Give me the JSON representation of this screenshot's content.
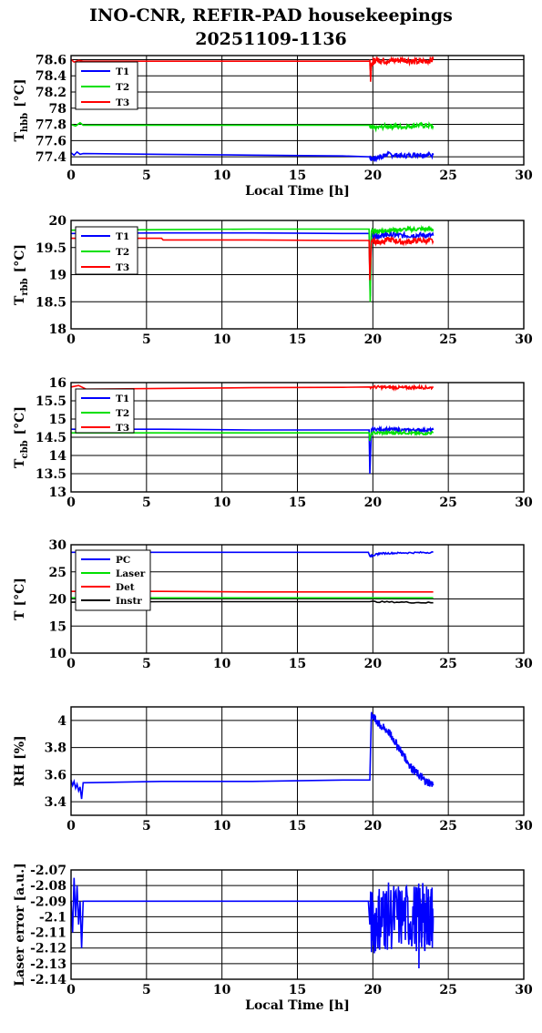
{
  "header": {
    "title_line1": "INO-CNR, REFIR-PAD housekeepings",
    "title_line2": "20251109-1136"
  },
  "chart_data": [
    {
      "type": "line",
      "ylabel": "T",
      "ylabel_sub": "hbb",
      "ylabel_unit": "[°C]",
      "xlabel": "Local Time [h]",
      "xlim": [
        0,
        30
      ],
      "ylim": [
        77.3,
        78.65
      ],
      "yticks": [
        "77.4",
        "77.6",
        "77.8",
        "78",
        "78.2",
        "78.4",
        "78.6"
      ],
      "xticks": [
        "0",
        "5",
        "10",
        "15",
        "20",
        "25",
        "30"
      ],
      "legend_position": "top-left",
      "series": [
        {
          "name": "T1",
          "color": "#0000ff",
          "x": [
            0,
            0.2,
            0.4,
            0.6,
            0.8,
            6,
            12,
            18,
            19.8,
            19.9,
            20.5,
            21,
            22,
            23,
            24
          ],
          "y": [
            77.45,
            77.42,
            77.46,
            77.43,
            77.44,
            77.43,
            77.42,
            77.41,
            77.4,
            77.37,
            77.4,
            77.43,
            77.41,
            77.43,
            77.42
          ],
          "noise_after": 19.8,
          "noise_amp": 0.03
        },
        {
          "name": "T2",
          "color": "#00e000",
          "x": [
            0,
            0.3,
            0.6,
            0.8,
            6,
            12,
            18,
            19.8,
            19.9,
            21,
            22,
            23,
            24
          ],
          "y": [
            77.8,
            77.78,
            77.82,
            77.79,
            77.79,
            77.79,
            77.79,
            77.79,
            77.75,
            77.78,
            77.77,
            77.79,
            77.78
          ],
          "noise_after": 19.8,
          "noise_amp": 0.03
        },
        {
          "name": "T3",
          "color": "#ff0000",
          "x": [
            0,
            0.2,
            0.5,
            0.8,
            6,
            12,
            18,
            19.8,
            19.85,
            19.9,
            20.2,
            21,
            22,
            23,
            24
          ],
          "y": [
            78.6,
            78.57,
            78.59,
            78.58,
            78.58,
            78.58,
            78.58,
            78.58,
            78.35,
            78.55,
            78.6,
            78.58,
            78.6,
            78.57,
            78.6
          ],
          "noise_after": 19.8,
          "noise_amp": 0.04
        }
      ]
    },
    {
      "type": "line",
      "ylabel": "T",
      "ylabel_sub": "rbb",
      "ylabel_unit": "[°C]",
      "xlabel": "",
      "xlim": [
        0,
        30
      ],
      "ylim": [
        18,
        20
      ],
      "yticks": [
        "18",
        "18.5",
        "19",
        "19.5",
        "20"
      ],
      "xticks": [
        "0",
        "5",
        "10",
        "15",
        "20",
        "25",
        "30"
      ],
      "legend_position": "top-left",
      "series": [
        {
          "name": "T1",
          "color": "#0000ff",
          "x": [
            0,
            6,
            12,
            18,
            19.75,
            19.82,
            19.9,
            20.5,
            21,
            22,
            23,
            24
          ],
          "y": [
            19.76,
            19.77,
            19.77,
            19.76,
            19.76,
            18.6,
            19.72,
            19.72,
            19.74,
            19.72,
            19.73,
            19.72
          ],
          "noise_after": 19.9,
          "noise_amp": 0.05
        },
        {
          "name": "T2",
          "color": "#00e000",
          "x": [
            0,
            6,
            12,
            18,
            19.75,
            19.82,
            19.9,
            20.5,
            21,
            22,
            23,
            24
          ],
          "y": [
            19.82,
            19.83,
            19.84,
            19.84,
            19.84,
            18.5,
            19.8,
            19.8,
            19.82,
            19.83,
            19.84,
            19.84
          ],
          "noise_after": 19.9,
          "noise_amp": 0.04
        },
        {
          "name": "T3",
          "color": "#ff0000",
          "x": [
            0,
            6,
            6.1,
            12,
            18,
            19.75,
            19.8,
            19.9,
            20.5,
            21,
            22,
            23,
            24
          ],
          "y": [
            19.67,
            19.67,
            19.64,
            19.64,
            19.63,
            19.63,
            18.9,
            19.62,
            19.6,
            19.65,
            19.6,
            19.63,
            19.62
          ],
          "noise_after": 19.9,
          "noise_amp": 0.05
        }
      ]
    },
    {
      "type": "line",
      "ylabel": "T",
      "ylabel_sub": "cbb",
      "ylabel_unit": "[°C]",
      "xlabel": "",
      "xlim": [
        0,
        30
      ],
      "ylim": [
        13,
        16
      ],
      "yticks": [
        "13",
        "13.5",
        "14",
        "14.5",
        "15",
        "15.5",
        "16"
      ],
      "xticks": [
        "0",
        "5",
        "10",
        "15",
        "20",
        "25",
        "30"
      ],
      "legend_position": "top-left",
      "series": [
        {
          "name": "T1",
          "color": "#0000ff",
          "x": [
            0,
            6,
            12,
            18,
            19.75,
            19.8,
            19.9,
            21,
            22,
            23,
            24
          ],
          "y": [
            14.72,
            14.72,
            14.7,
            14.7,
            14.7,
            13.5,
            14.72,
            14.72,
            14.7,
            14.7,
            14.7
          ],
          "noise_after": 19.9,
          "noise_amp": 0.04
        },
        {
          "name": "T2",
          "color": "#00e000",
          "x": [
            0,
            6,
            12,
            18,
            19.75,
            19.8,
            19.9,
            21,
            22,
            23,
            24
          ],
          "y": [
            14.62,
            14.62,
            14.62,
            14.62,
            14.62,
            14.4,
            14.62,
            14.62,
            14.63,
            14.6,
            14.62
          ],
          "noise_after": 19.9,
          "noise_amp": 0.04
        },
        {
          "name": "T3",
          "color": "#ff0000",
          "x": [
            0,
            0.5,
            1,
            6,
            12,
            18,
            19.8,
            21,
            22,
            23,
            24
          ],
          "y": [
            15.88,
            15.92,
            15.82,
            15.84,
            15.86,
            15.87,
            15.88,
            15.87,
            15.86,
            15.87,
            15.86
          ],
          "noise_after": 19.8,
          "noise_amp": 0.04
        }
      ]
    },
    {
      "type": "line",
      "ylabel": "T [°C]",
      "ylabel_sub": "",
      "ylabel_unit": "",
      "xlabel": "",
      "xlim": [
        0,
        30
      ],
      "ylim": [
        10,
        30
      ],
      "yticks": [
        "10",
        "15",
        "20",
        "25",
        "30"
      ],
      "xticks": [
        "0",
        "5",
        "10",
        "15",
        "20",
        "25",
        "30"
      ],
      "legend_position": "top-left",
      "series": [
        {
          "name": "PC",
          "color": "#0000ff",
          "x": [
            0,
            6,
            12,
            18,
            19.7,
            19.8,
            20.5,
            22,
            24
          ],
          "y": [
            28.6,
            28.6,
            28.6,
            28.6,
            28.6,
            27.9,
            28.4,
            28.5,
            28.6
          ],
          "noise_after": 19.8,
          "noise_amp": 0.15
        },
        {
          "name": "Laser",
          "color": "#00e000",
          "x": [
            0,
            6,
            12,
            18,
            24
          ],
          "y": [
            20.2,
            20.2,
            20.2,
            20.2,
            20.2
          ]
        },
        {
          "name": "Det",
          "color": "#ff0000",
          "x": [
            0,
            6,
            12,
            18,
            24
          ],
          "y": [
            21.4,
            21.4,
            21.3,
            21.3,
            21.3
          ]
        },
        {
          "name": "Instr",
          "color": "#000000",
          "x": [
            0,
            6,
            12,
            18,
            19.8,
            24
          ],
          "y": [
            19.4,
            19.5,
            19.5,
            19.5,
            19.5,
            19.3
          ],
          "noise_after": 19.8,
          "noise_amp": 0.12
        }
      ]
    },
    {
      "type": "line",
      "ylabel": "RH [%]",
      "ylabel_sub": "",
      "ylabel_unit": "",
      "xlabel": "",
      "xlim": [
        0,
        30
      ],
      "ylim": [
        3.3,
        4.1
      ],
      "yticks": [
        "3.4",
        "3.6",
        "3.8",
        "4"
      ],
      "xticks": [
        "0",
        "5",
        "10",
        "15",
        "20",
        "25",
        "30"
      ],
      "legend_position": "none",
      "series": [
        {
          "x": [
            0,
            0.1,
            0.2,
            0.3,
            0.4,
            0.5,
            0.6,
            0.7,
            0.8,
            6,
            12,
            18,
            19.8,
            19.9,
            20.2,
            20.5,
            21,
            21.5,
            22,
            22.5,
            23,
            23.5,
            24
          ],
          "y": [
            3.56,
            3.52,
            3.55,
            3.5,
            3.53,
            3.48,
            3.51,
            3.42,
            3.54,
            3.55,
            3.55,
            3.56,
            3.56,
            4.05,
            4.0,
            3.96,
            3.92,
            3.84,
            3.75,
            3.66,
            3.6,
            3.55,
            3.53
          ],
          "noise_after": 19.9,
          "noise_amp": 0.03,
          "color": "#0000ff"
        }
      ]
    },
    {
      "type": "line",
      "ylabel": "Laser error [a.u.]",
      "ylabel_sub": "",
      "ylabel_unit": "",
      "xlabel": "Local Time [h]",
      "xlim": [
        0,
        30
      ],
      "ylim": [
        -2.14,
        -2.07
      ],
      "yticks": [
        "-2.14",
        "-2.13",
        "-2.12",
        "-2.11",
        "-2.1",
        "-2.09",
        "-2.08",
        "-2.07"
      ],
      "xticks": [
        "0",
        "5",
        "10",
        "15",
        "20",
        "25",
        "30"
      ],
      "legend_position": "none",
      "series": [
        {
          "x": [
            0,
            0.1,
            0.2,
            0.3,
            0.4,
            0.5,
            0.6,
            0.7,
            0.8,
            6,
            12,
            18,
            19.7,
            19.8,
            20.5,
            21,
            22,
            23,
            23.5,
            24
          ],
          "y": [
            -2.09,
            -2.11,
            -2.075,
            -2.1,
            -2.08,
            -2.105,
            -2.09,
            -2.12,
            -2.09,
            -2.09,
            -2.09,
            -2.09,
            -2.09,
            -2.105,
            -2.1,
            -2.1,
            -2.1,
            -2.1,
            -2.1,
            -2.1
          ],
          "noise_after": 19.8,
          "noise_amp": 0.022,
          "spike": [
            23.05,
            -2.133
          ],
          "color": "#0000ff"
        }
      ]
    }
  ]
}
